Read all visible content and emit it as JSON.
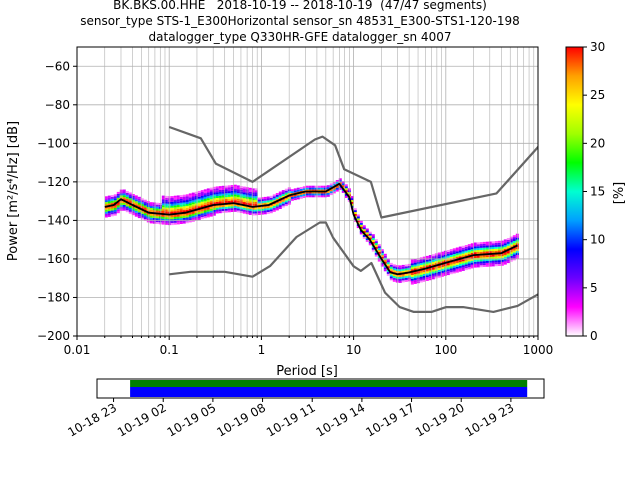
{
  "title": {
    "line1": "BK.BKS.00.HHE   2018-10-19 -- 2018-10-19  (47/47 segments)",
    "line2": "sensor_type STS-1_E300Horizontal sensor_sn 48531_E300-STS1-120-198",
    "line3": "datalogger_type Q330HR-GFE datalogger_sn 4007"
  },
  "chart_data": [
    {
      "type": "heatmap",
      "xlabel": "Period [s]",
      "ylabel": "Power [m²/s⁴/Hz] [dB]",
      "xscale": "log",
      "xlim": [
        0.01,
        1000
      ],
      "ylim": [
        -200,
        -50
      ],
      "x_ticks": [
        "0.01",
        "0.1",
        "1",
        "10",
        "100",
        "1000"
      ],
      "y_ticks": [
        "−200",
        "−180",
        "−160",
        "−140",
        "−120",
        "−100",
        "−80",
        "−60"
      ],
      "grid": true,
      "colorbar": {
        "label": "[%]",
        "range": [
          0,
          30
        ],
        "ticks": [
          "0",
          "5",
          "10",
          "15",
          "20",
          "25",
          "30"
        ],
        "colormap": [
          "#ffffff",
          "#ff00ff",
          "#6a00ff",
          "#0000ff",
          "#00a0ff",
          "#00ffd0",
          "#00ff00",
          "#a0ff00",
          "#ffff00",
          "#ffa000",
          "#ff0000"
        ]
      },
      "series": [
        {
          "name": "high noise model",
          "color": "#666666",
          "x": [
            0.1,
            0.22,
            0.32,
            0.8,
            3.8,
            4.6,
            6.3,
            7.9,
            15.4,
            20,
            354.8,
            10000
          ],
          "y": [
            -91.5,
            -97.4,
            -110.5,
            -120,
            -98,
            -96.5,
            -101,
            -113.5,
            -120,
            -138.5,
            -126,
            -48.5
          ]
        },
        {
          "name": "low noise model",
          "color": "#666666",
          "x": [
            0.1,
            0.17,
            0.4,
            0.8,
            1.24,
            2.4,
            4.3,
            5,
            6,
            10,
            12,
            15.6,
            21.9,
            31.6,
            45,
            70,
            101,
            154,
            328,
            600,
            10000
          ],
          "y": [
            -168,
            -166.7,
            -166.7,
            -169.2,
            -163.7,
            -148.6,
            -141.1,
            -141.1,
            -149,
            -163.8,
            -166.2,
            -162.1,
            -177.5,
            -185,
            -187.5,
            -187.5,
            -185,
            -185,
            -187.5,
            -184.4,
            -151.5
          ]
        },
        {
          "name": "mode",
          "color": "#000000",
          "x": [
            0.02,
            0.025,
            0.03,
            0.04,
            0.06,
            0.1,
            0.15,
            0.3,
            0.5,
            0.8,
            1.2,
            2,
            3,
            5,
            7,
            9,
            10,
            12,
            15,
            20,
            25,
            30,
            40,
            60,
            100,
            200,
            400,
            600
          ],
          "y": [
            -133,
            -132,
            -129,
            -132,
            -136,
            -137,
            -136,
            -132,
            -131,
            -133,
            -132,
            -127,
            -125,
            -125,
            -121,
            -128,
            -137,
            -145,
            -150,
            -160,
            -167,
            -168,
            -167,
            -165,
            -162,
            -158,
            -157,
            -153
          ]
        }
      ]
    },
    {
      "type": "bar",
      "description": "data coverage timeline",
      "x_ticks": [
        "10-18 23",
        "10-19 02",
        "10-19 05",
        "10-19 08",
        "10-19 11",
        "10-19 14",
        "10-19 17",
        "10-19 20",
        "10-19 23"
      ],
      "xlim": [
        "2018-10-18 22:00",
        "2018-10-20 01:00"
      ],
      "coverage": {
        "start": "2018-10-19 00:00",
        "end": "2018-10-19 23:59",
        "colors": [
          "#008000",
          "#0000ff"
        ]
      }
    }
  ]
}
